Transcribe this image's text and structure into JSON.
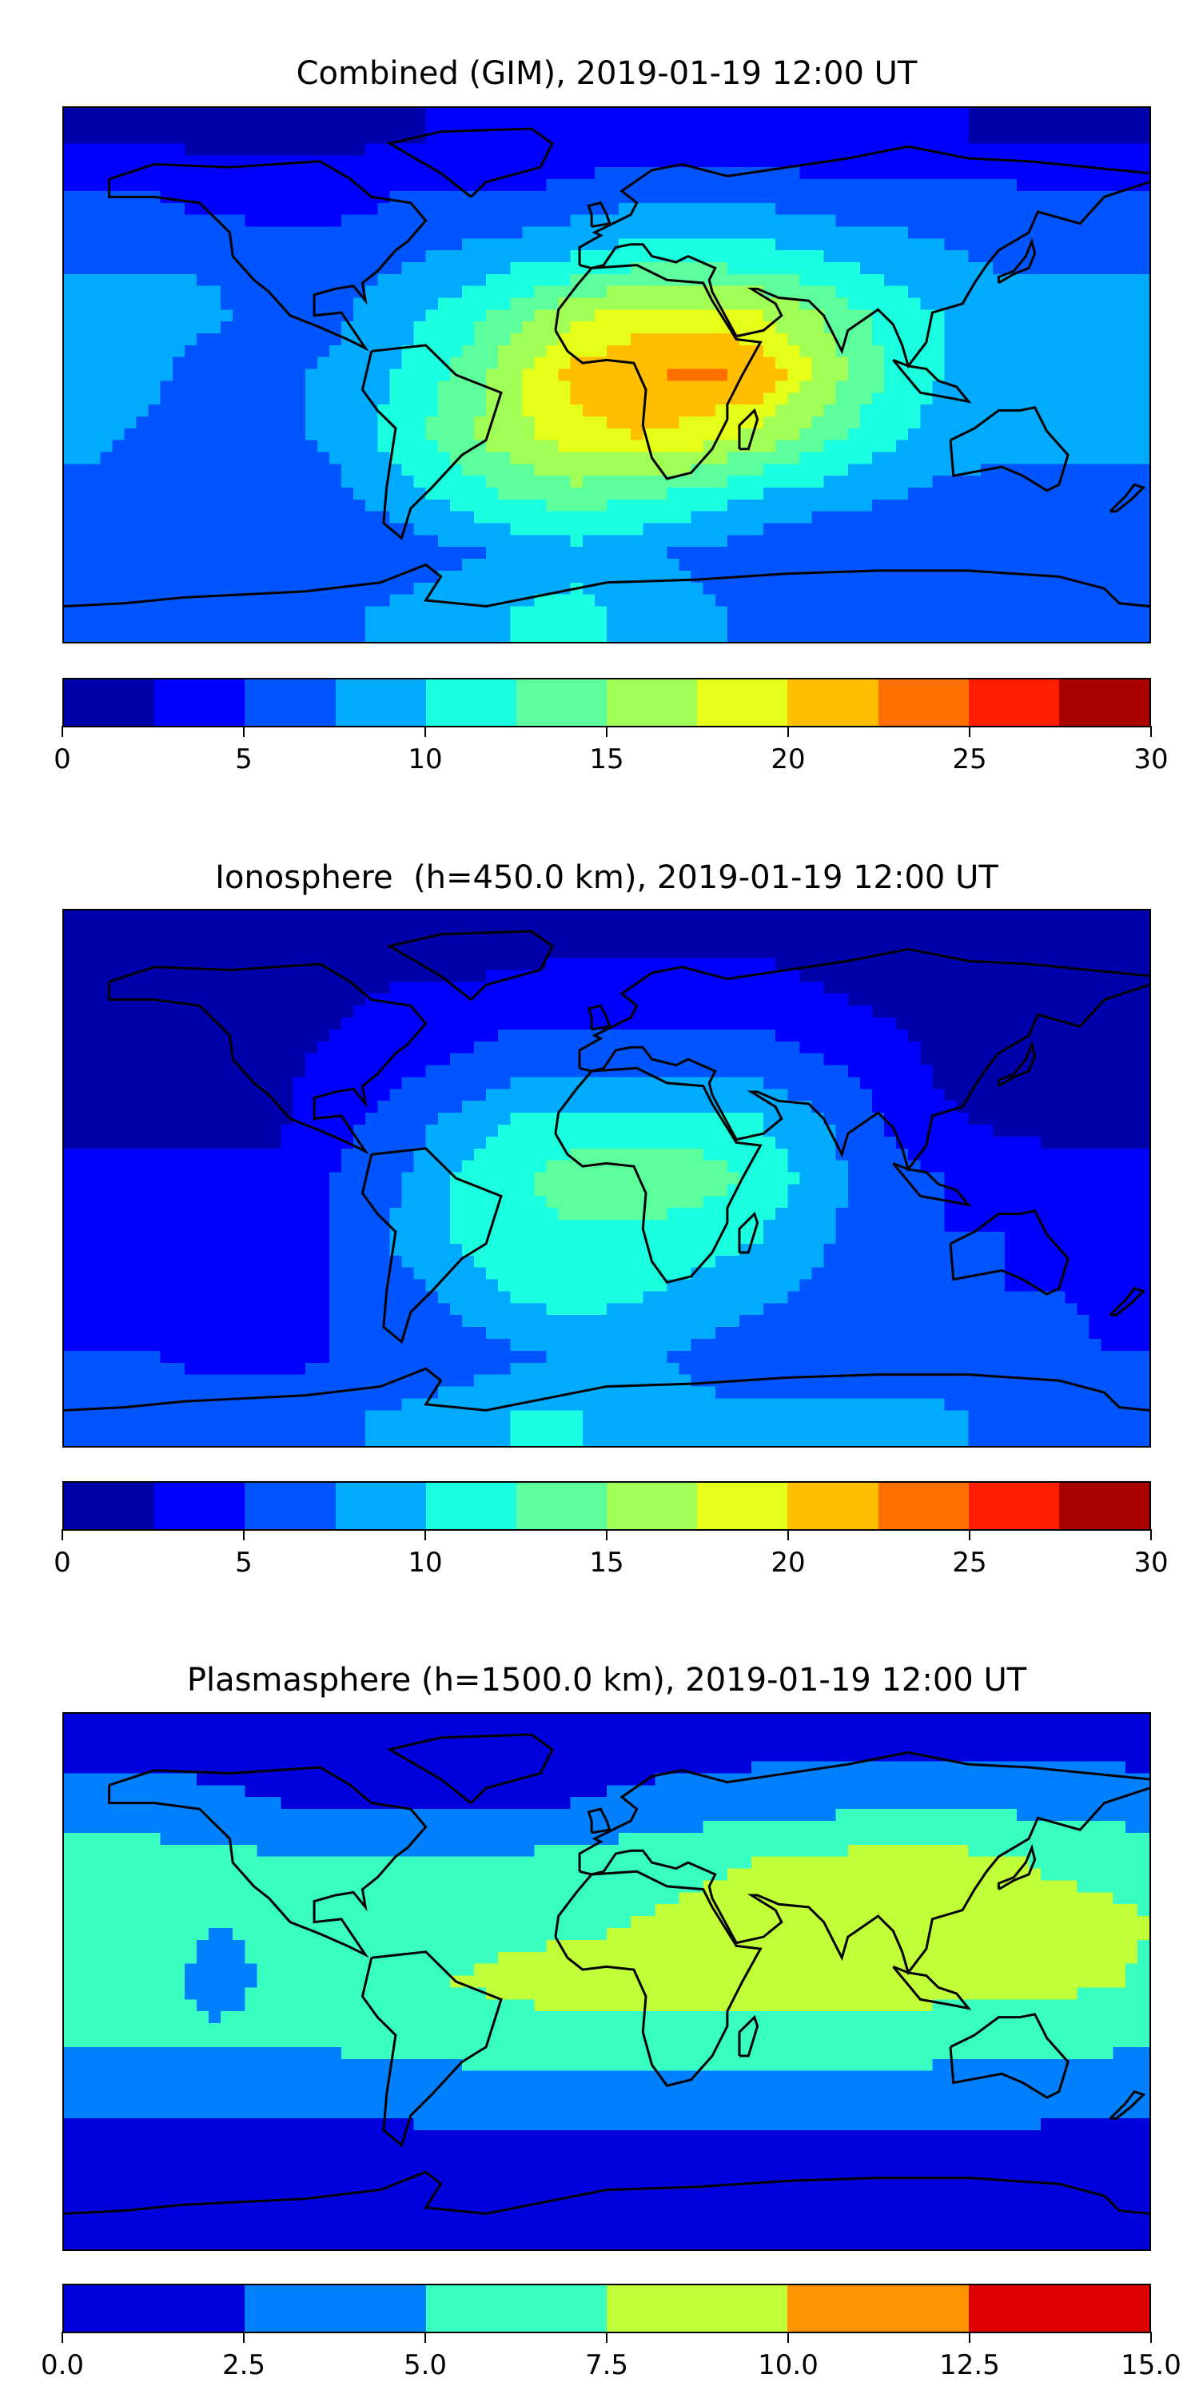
{
  "chart_data": [
    {
      "type": "heatmap",
      "subtype": "filled-contour world map",
      "title": "Combined (GIM), 2019-01-19 12:00 UT",
      "lon_range": [
        -180,
        180
      ],
      "lat_range": [
        -90,
        90
      ],
      "grid_lons": [
        -170,
        -150,
        -130,
        -110,
        -90,
        -70,
        -50,
        -30,
        -10,
        10,
        30,
        50,
        70,
        90,
        110,
        130,
        150,
        170
      ],
      "grid_lats": [
        80,
        60,
        40,
        20,
        0,
        -20,
        -40,
        -60,
        -80
      ],
      "values": [
        [
          2,
          2,
          2,
          2,
          2,
          2,
          3,
          3,
          3,
          3,
          3,
          3,
          3,
          3,
          3,
          2,
          2,
          2
        ],
        [
          5,
          5,
          4,
          4,
          4,
          5,
          5,
          5,
          6,
          7,
          7,
          7,
          6,
          6,
          6,
          6,
          5,
          5
        ],
        [
          7,
          7,
          7,
          6,
          6,
          7,
          8,
          9,
          10,
          11,
          11,
          11,
          10,
          9,
          8,
          7,
          7,
          7
        ],
        [
          9,
          9,
          8,
          6,
          7,
          9,
          11,
          14,
          17,
          19,
          19,
          18,
          15,
          12,
          10,
          9,
          9,
          9
        ],
        [
          9,
          8,
          6,
          7,
          8,
          10,
          13,
          17,
          21,
          22,
          23,
          22,
          17,
          13,
          10,
          9,
          9,
          9
        ],
        [
          8,
          7,
          7,
          7,
          8,
          11,
          14,
          17,
          19,
          20,
          19,
          17,
          14,
          11,
          9,
          8,
          8,
          8
        ],
        [
          7,
          7,
          6,
          6,
          7,
          9,
          11,
          13,
          14,
          13,
          12,
          10,
          9,
          8,
          7,
          7,
          7,
          7
        ],
        [
          6,
          5,
          5,
          5,
          5,
          6,
          7,
          8,
          9,
          8,
          7,
          6,
          5,
          5,
          5,
          5,
          5,
          6
        ],
        [
          7,
          7,
          7,
          7,
          7,
          8,
          9,
          10,
          11,
          9,
          8,
          7,
          7,
          7,
          7,
          7,
          7,
          7
        ]
      ],
      "levels": [
        0,
        2.5,
        5,
        7.5,
        10,
        12.5,
        15,
        17.5,
        20,
        22.5,
        25,
        27.5,
        30
      ],
      "colors": [
        "#0000aa",
        "#0000ff",
        "#0055ff",
        "#00aaff",
        "#19ffdf",
        "#5cff9b",
        "#a1ff56",
        "#e5ff19",
        "#ffbf00",
        "#ff6f00",
        "#ff1f00",
        "#aa0000"
      ],
      "colorbar_ticks": [
        "0",
        "5",
        "10",
        "15",
        "20",
        "25",
        "30"
      ]
    },
    {
      "type": "heatmap",
      "subtype": "filled-contour world map",
      "title": "Ionosphere  (h=450.0 km), 2019-01-19 12:00 UT",
      "lon_range": [
        -180,
        180
      ],
      "lat_range": [
        -90,
        90
      ],
      "grid_lons": [
        -170,
        -150,
        -130,
        -110,
        -90,
        -70,
        -50,
        -30,
        -10,
        10,
        30,
        50,
        70,
        90,
        110,
        130,
        150,
        170
      ],
      "grid_lats": [
        80,
        60,
        40,
        20,
        0,
        -20,
        -40,
        -60,
        -80
      ],
      "values": [
        [
          1,
          1,
          1,
          1,
          1,
          1,
          1,
          1,
          2,
          2,
          2,
          2,
          1,
          1,
          1,
          1,
          1,
          1
        ],
        [
          1,
          1,
          1,
          1,
          2,
          3,
          3,
          4,
          4,
          4,
          4,
          4,
          3,
          2,
          1,
          1,
          1,
          1
        ],
        [
          1,
          1,
          1,
          2,
          3,
          4,
          5,
          6,
          6,
          6,
          6,
          6,
          5,
          4,
          2,
          1,
          1,
          1
        ],
        [
          2,
          2,
          2,
          2,
          4,
          6,
          8,
          10,
          11,
          11,
          11,
          10,
          8,
          5,
          3,
          2,
          2,
          2
        ],
        [
          3,
          3,
          3,
          3,
          5,
          7,
          10,
          12,
          14,
          14,
          14,
          12,
          9,
          6,
          5,
          4,
          3,
          3
        ],
        [
          4,
          4,
          4,
          4,
          5,
          8,
          10,
          12,
          12,
          12,
          11,
          10,
          8,
          6,
          5,
          5,
          4,
          4
        ],
        [
          4,
          4,
          4,
          4,
          5,
          6,
          8,
          10,
          11,
          10,
          9,
          8,
          7,
          6,
          6,
          5,
          5,
          4
        ],
        [
          5,
          5,
          4,
          4,
          5,
          5,
          6,
          7,
          8,
          8,
          7,
          6,
          6,
          6,
          6,
          6,
          6,
          5
        ],
        [
          7,
          7,
          7,
          7,
          7,
          8,
          9,
          10,
          10,
          9,
          8,
          8,
          8,
          8,
          8,
          7,
          7,
          7
        ]
      ],
      "levels": [
        0,
        2.5,
        5,
        7.5,
        10,
        12.5,
        15,
        17.5,
        20,
        22.5,
        25,
        27.5,
        30
      ],
      "colors": [
        "#0000aa",
        "#0000ff",
        "#0055ff",
        "#00aaff",
        "#19ffdf",
        "#5cff9b",
        "#a1ff56",
        "#e5ff19",
        "#ffbf00",
        "#ff6f00",
        "#ff1f00",
        "#aa0000"
      ],
      "colorbar_ticks": [
        "0",
        "5",
        "10",
        "15",
        "20",
        "25",
        "30"
      ]
    },
    {
      "type": "heatmap",
      "subtype": "filled-contour world map",
      "title": "Plasmasphere (h=1500.0 km), 2019-01-19 12:00 UT",
      "lon_range": [
        -180,
        180
      ],
      "lat_range": [
        -90,
        90
      ],
      "grid_lons": [
        -170,
        -150,
        -130,
        -110,
        -90,
        -70,
        -50,
        -30,
        -10,
        10,
        30,
        50,
        70,
        90,
        110,
        130,
        150,
        170
      ],
      "grid_lats": [
        80,
        60,
        40,
        20,
        0,
        -20,
        -40,
        -60,
        -80
      ],
      "values": [
        [
          1.5,
          1.5,
          1.5,
          1.5,
          1.5,
          1.5,
          1.5,
          1.5,
          1.5,
          1.5,
          1.5,
          1.5,
          1.5,
          1.5,
          1.5,
          1.5,
          1.5,
          1.5
        ],
        [
          3.5,
          3.5,
          3,
          2.5,
          2,
          2,
          2,
          2,
          2.5,
          3,
          3.5,
          4,
          4,
          4.5,
          4.5,
          4.5,
          4,
          4
        ],
        [
          6,
          6,
          6,
          5.5,
          5,
          5,
          5,
          5.5,
          6,
          6.5,
          7,
          7.5,
          8,
          8.5,
          8.5,
          8,
          7,
          6.5
        ],
        [
          7,
          6.5,
          5,
          5.5,
          6.5,
          7,
          7,
          7,
          7,
          7.5,
          8,
          8.5,
          9,
          9,
          9,
          9,
          8.5,
          8
        ],
        [
          6.5,
          6,
          4,
          5.5,
          6.5,
          7,
          7.5,
          8,
          8.5,
          8.5,
          8.5,
          8.5,
          8.5,
          8.5,
          8.5,
          8.5,
          8,
          7.5
        ],
        [
          5.5,
          5.5,
          5.5,
          5.5,
          5.5,
          6,
          6,
          6.5,
          6.5,
          6.5,
          6.5,
          6.5,
          6.5,
          6.5,
          6,
          6,
          6,
          5.5
        ],
        [
          3,
          3,
          3,
          3,
          3,
          3,
          3.5,
          3.5,
          3.5,
          3.5,
          3.5,
          3.5,
          3.5,
          3.5,
          3.5,
          3.5,
          3,
          3
        ],
        [
          1.5,
          1.5,
          1.5,
          1.5,
          1.5,
          1.5,
          1.5,
          1.5,
          1.5,
          1.5,
          1.5,
          1.5,
          1.5,
          1.5,
          1.5,
          1.5,
          1.5,
          1.5
        ],
        [
          1,
          1,
          1,
          1,
          1,
          1,
          1,
          1,
          1,
          1,
          1,
          1,
          1,
          1,
          1,
          1,
          1,
          1
        ]
      ],
      "levels": [
        0,
        2.5,
        5,
        7.5,
        10,
        12.5,
        15
      ],
      "colors": [
        "#0000dd",
        "#0080ff",
        "#38ffc1",
        "#c1ff38",
        "#ff9400",
        "#dd0000"
      ],
      "colorbar_ticks": [
        "0.0",
        "2.5",
        "5.0",
        "7.5",
        "10.0",
        "12.5",
        "15.0"
      ]
    }
  ]
}
